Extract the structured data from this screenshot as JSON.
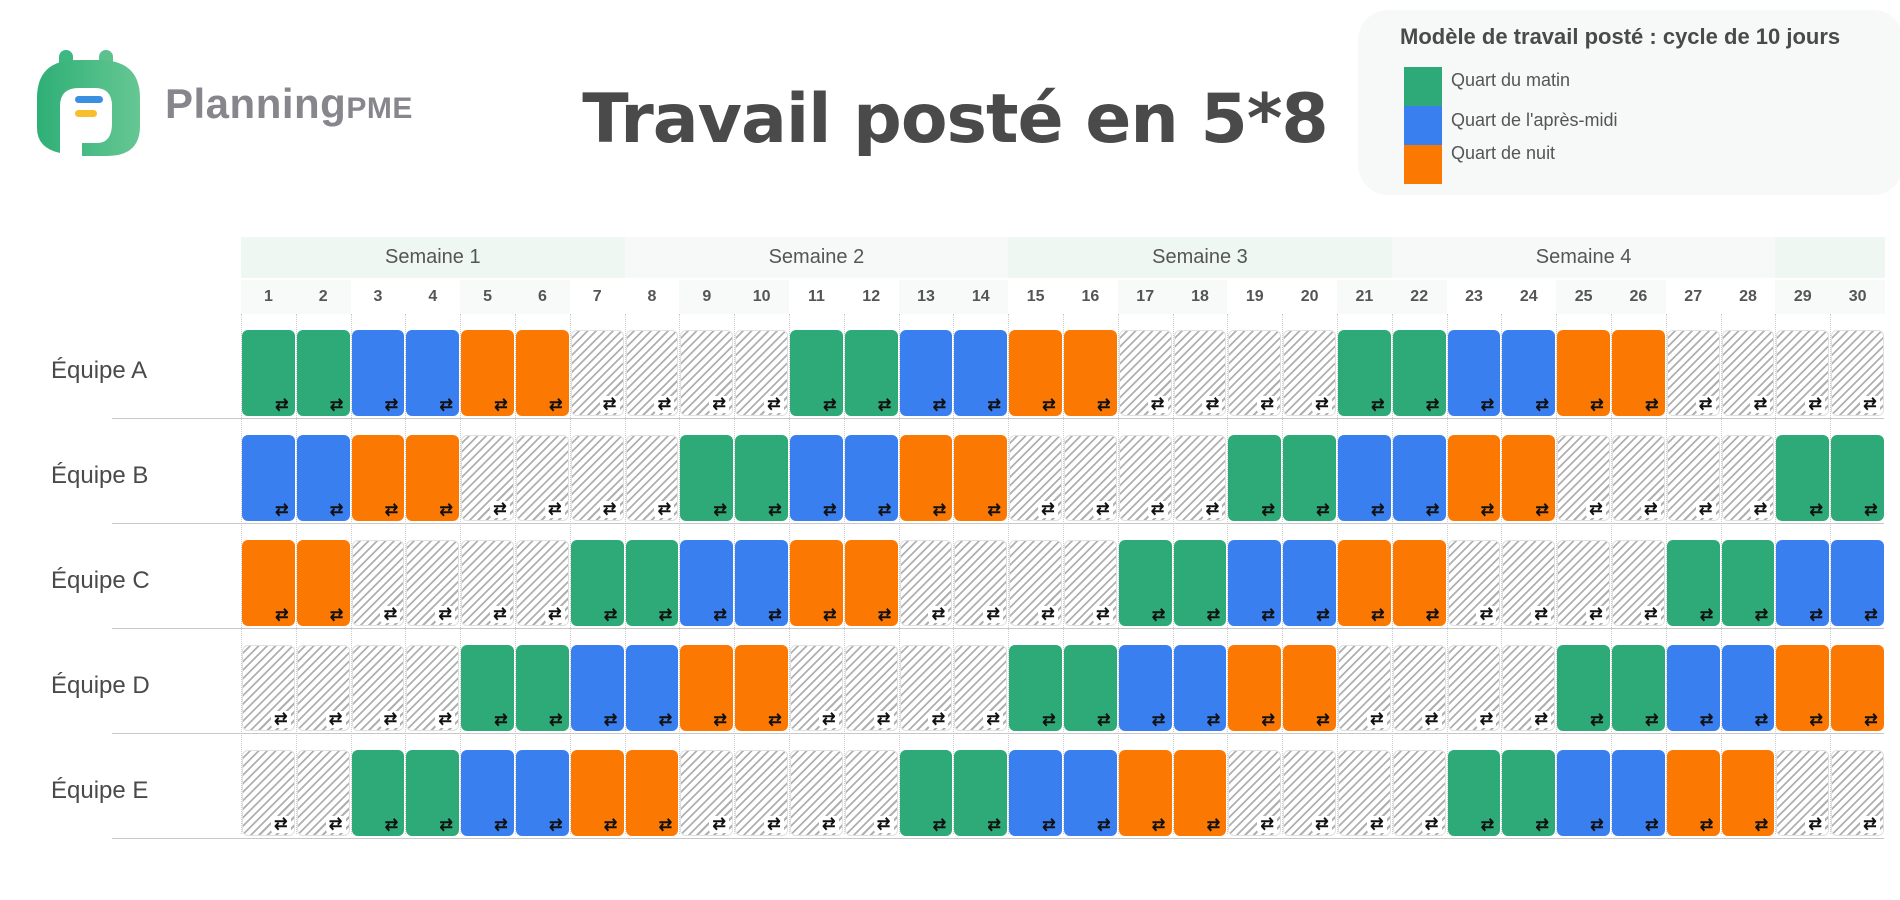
{
  "brand": {
    "name": "Planning",
    "suffix": "PME"
  },
  "title": "Travail posté en 5*8",
  "legend": {
    "title": "Modèle de travail posté : cycle de 10 jours",
    "items": [
      {
        "code": "M",
        "label": "Quart du matin",
        "color": "#2eaa78"
      },
      {
        "code": "A",
        "label": "Quart de l'après-midi",
        "color": "#3a7ff0"
      },
      {
        "code": "N",
        "label": "Quart de nuit",
        "color": "#fb7903"
      }
    ]
  },
  "rest_color": "hatched-grey",
  "cell_icon": "swap-arrows-icon",
  "weeks": [
    {
      "label": "Semaine 1",
      "days": 7,
      "color": "#eef7f2"
    },
    {
      "label": "Semaine 2",
      "days": 7,
      "color": "#f7f9f8"
    },
    {
      "label": "Semaine 3",
      "days": 7,
      "color": "#eef7f2"
    },
    {
      "label": "Semaine 4",
      "days": 7,
      "color": "#f7f9f8"
    },
    {
      "label": "",
      "days": 2,
      "color": "#eef7f2"
    }
  ],
  "days": [
    "1",
    "2",
    "3",
    "4",
    "5",
    "6",
    "7",
    "8",
    "9",
    "10",
    "11",
    "12",
    "13",
    "14",
    "15",
    "16",
    "17",
    "18",
    "19",
    "20",
    "21",
    "22",
    "23",
    "24",
    "25",
    "26",
    "27",
    "28",
    "29",
    "30"
  ],
  "teams": [
    {
      "name": "Équipe A",
      "shifts": [
        "M",
        "M",
        "A",
        "A",
        "N",
        "N",
        "R",
        "R",
        "R",
        "R",
        "M",
        "M",
        "A",
        "A",
        "N",
        "N",
        "R",
        "R",
        "R",
        "R",
        "M",
        "M",
        "A",
        "A",
        "N",
        "N",
        "R",
        "R",
        "R",
        "R"
      ]
    },
    {
      "name": "Équipe B",
      "shifts": [
        "A",
        "A",
        "N",
        "N",
        "R",
        "R",
        "R",
        "R",
        "M",
        "M",
        "A",
        "A",
        "N",
        "N",
        "R",
        "R",
        "R",
        "R",
        "M",
        "M",
        "A",
        "A",
        "N",
        "N",
        "R",
        "R",
        "R",
        "R",
        "M",
        "M"
      ]
    },
    {
      "name": "Équipe C",
      "shifts": [
        "N",
        "N",
        "R",
        "R",
        "R",
        "R",
        "M",
        "M",
        "A",
        "A",
        "N",
        "N",
        "R",
        "R",
        "R",
        "R",
        "M",
        "M",
        "A",
        "A",
        "N",
        "N",
        "R",
        "R",
        "R",
        "R",
        "M",
        "M",
        "A",
        "A"
      ]
    },
    {
      "name": "Équipe D",
      "shifts": [
        "R",
        "R",
        "R",
        "R",
        "M",
        "M",
        "A",
        "A",
        "N",
        "N",
        "R",
        "R",
        "R",
        "R",
        "M",
        "M",
        "A",
        "A",
        "N",
        "N",
        "R",
        "R",
        "R",
        "R",
        "M",
        "M",
        "A",
        "A",
        "N",
        "N"
      ]
    },
    {
      "name": "Équipe E",
      "shifts": [
        "R",
        "R",
        "M",
        "M",
        "A",
        "A",
        "N",
        "N",
        "R",
        "R",
        "R",
        "R",
        "M",
        "M",
        "A",
        "A",
        "N",
        "N",
        "R",
        "R",
        "R",
        "R",
        "M",
        "M",
        "A",
        "A",
        "N",
        "N",
        "R",
        "R"
      ]
    }
  ]
}
